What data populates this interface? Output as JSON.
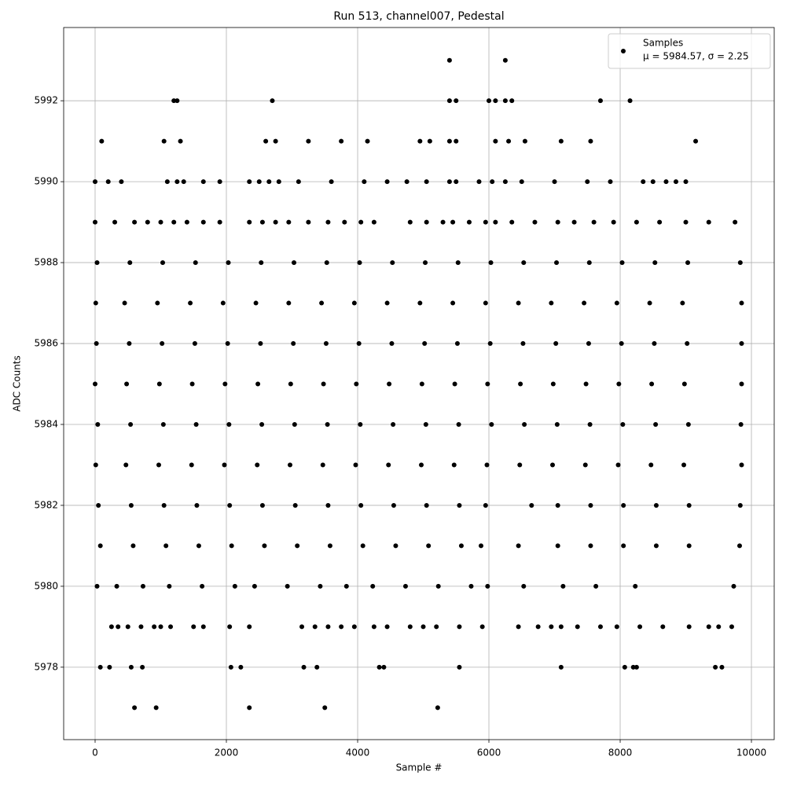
{
  "chart_data": {
    "type": "scatter",
    "title": "Run 513, channel007, Pedestal",
    "x_label": "Sample #",
    "y_label": "ADC Counts",
    "xlim": [
      -479,
      10347
    ],
    "ylim": [
      5976.21,
      5993.81
    ],
    "xticks": [
      0,
      2000,
      4000,
      6000,
      8000,
      10000
    ],
    "yticks": [
      5978,
      5980,
      5982,
      5984,
      5986,
      5988,
      5990,
      5992
    ],
    "grid": true,
    "legend_position": "upper right",
    "legend_stats": "μ = 5984.57, σ = 2.25",
    "series": [
      {
        "name": "Samples",
        "color": "#000000",
        "x": [
          5400,
          6250,
          1200,
          1250,
          2700,
          5400,
          5500,
          6000,
          6100,
          6250,
          6350,
          7700,
          8150,
          100,
          1050,
          1300,
          2600,
          2750,
          3250,
          3750,
          4150,
          4950,
          5100,
          5400,
          5500,
          6100,
          6300,
          6550,
          7100,
          7550,
          9150,
          0,
          200,
          400,
          1100,
          1250,
          1350,
          1650,
          1900,
          2350,
          2500,
          2650,
          2800,
          3100,
          3600,
          4100,
          4450,
          4750,
          5050,
          5400,
          5500,
          5850,
          6050,
          6250,
          6500,
          7000,
          7500,
          7850,
          8350,
          8500,
          8700,
          8850,
          9000,
          0,
          300,
          600,
          800,
          1000,
          1200,
          1400,
          1650,
          1900,
          2350,
          2550,
          2750,
          2950,
          3250,
          3550,
          3800,
          4050,
          4250,
          4800,
          5050,
          5300,
          5450,
          5700,
          5950,
          6100,
          6350,
          6700,
          7050,
          7300,
          7600,
          7900,
          8250,
          8600,
          9000,
          9350,
          9750,
          30,
          530,
          1030,
          1530,
          2030,
          2530,
          3030,
          3530,
          4030,
          4530,
          5030,
          5530,
          6030,
          6530,
          7030,
          7530,
          8030,
          8530,
          9030,
          9830,
          10,
          450,
          950,
          1450,
          1950,
          2450,
          2950,
          3450,
          3950,
          4450,
          4950,
          5450,
          5950,
          6450,
          6950,
          7450,
          7950,
          8450,
          8950,
          9850,
          20,
          520,
          1020,
          1520,
          2020,
          2520,
          3020,
          3520,
          4020,
          4520,
          5020,
          5520,
          6020,
          6520,
          7020,
          7520,
          8020,
          8520,
          9020,
          9850,
          0,
          480,
          980,
          1480,
          1980,
          2480,
          2980,
          3480,
          3980,
          4480,
          4980,
          5480,
          5980,
          6480,
          6980,
          7480,
          7980,
          8480,
          8980,
          9850,
          40,
          540,
          1040,
          1540,
          2040,
          2540,
          3040,
          3540,
          4040,
          4540,
          5040,
          5540,
          6040,
          6540,
          7040,
          7540,
          8040,
          8540,
          9040,
          9840,
          10,
          470,
          970,
          1470,
          1970,
          2470,
          2970,
          3470,
          3970,
          4470,
          4970,
          5470,
          5970,
          6470,
          6970,
          7470,
          7970,
          8470,
          8970,
          9850,
          50,
          550,
          1050,
          1550,
          2050,
          2550,
          3050,
          3550,
          4050,
          4550,
          5050,
          5550,
          5950,
          6650,
          7050,
          7550,
          8050,
          8550,
          9050,
          9830,
          80,
          580,
          1080,
          1580,
          2080,
          2580,
          3080,
          3580,
          4080,
          4580,
          5080,
          5580,
          5880,
          6450,
          7050,
          7550,
          8050,
          8550,
          9050,
          9820,
          30,
          330,
          730,
          1130,
          1630,
          2130,
          2430,
          2930,
          3430,
          3830,
          4230,
          4730,
          5230,
          5730,
          5980,
          6530,
          7130,
          7630,
          8230,
          9730,
          250,
          350,
          500,
          700,
          900,
          1000,
          1150,
          1500,
          1650,
          2050,
          2350,
          3150,
          3350,
          3550,
          3750,
          3950,
          4250,
          4450,
          4800,
          5000,
          5200,
          5550,
          5900,
          6450,
          6750,
          6950,
          7100,
          7350,
          7700,
          7950,
          8300,
          8650,
          9050,
          9350,
          9500,
          9700,
          80,
          220,
          550,
          720,
          2070,
          2220,
          3180,
          3380,
          4330,
          4400,
          5550,
          7100,
          8070,
          8200,
          8250,
          9450,
          9550,
          600,
          930,
          2350,
          3500,
          5220
        ],
        "values": [
          5993,
          5993,
          5992,
          5992,
          5992,
          5992,
          5992,
          5992,
          5992,
          5992,
          5992,
          5992,
          5992,
          5991,
          5991,
          5991,
          5991,
          5991,
          5991,
          5991,
          5991,
          5991,
          5991,
          5991,
          5991,
          5991,
          5991,
          5991,
          5991,
          5991,
          5991,
          5990,
          5990,
          5990,
          5990,
          5990,
          5990,
          5990,
          5990,
          5990,
          5990,
          5990,
          5990,
          5990,
          5990,
          5990,
          5990,
          5990,
          5990,
          5990,
          5990,
          5990,
          5990,
          5990,
          5990,
          5990,
          5990,
          5990,
          5990,
          5990,
          5990,
          5990,
          5990,
          5989,
          5989,
          5989,
          5989,
          5989,
          5989,
          5989,
          5989,
          5989,
          5989,
          5989,
          5989,
          5989,
          5989,
          5989,
          5989,
          5989,
          5989,
          5989,
          5989,
          5989,
          5989,
          5989,
          5989,
          5989,
          5989,
          5989,
          5989,
          5989,
          5989,
          5989,
          5989,
          5989,
          5989,
          5989,
          5989,
          5988,
          5988,
          5988,
          5988,
          5988,
          5988,
          5988,
          5988,
          5988,
          5988,
          5988,
          5988,
          5988,
          5988,
          5988,
          5988,
          5988,
          5988,
          5988,
          5988,
          5987,
          5987,
          5987,
          5987,
          5987,
          5987,
          5987,
          5987,
          5987,
          5987,
          5987,
          5987,
          5987,
          5987,
          5987,
          5987,
          5987,
          5987,
          5987,
          5987,
          5986,
          5986,
          5986,
          5986,
          5986,
          5986,
          5986,
          5986,
          5986,
          5986,
          5986,
          5986,
          5986,
          5986,
          5986,
          5986,
          5986,
          5986,
          5986,
          5986,
          5985,
          5985,
          5985,
          5985,
          5985,
          5985,
          5985,
          5985,
          5985,
          5985,
          5985,
          5985,
          5985,
          5985,
          5985,
          5985,
          5985,
          5985,
          5985,
          5985,
          5984,
          5984,
          5984,
          5984,
          5984,
          5984,
          5984,
          5984,
          5984,
          5984,
          5984,
          5984,
          5984,
          5984,
          5984,
          5984,
          5984,
          5984,
          5984,
          5984,
          5983,
          5983,
          5983,
          5983,
          5983,
          5983,
          5983,
          5983,
          5983,
          5983,
          5983,
          5983,
          5983,
          5983,
          5983,
          5983,
          5983,
          5983,
          5983,
          5983,
          5982,
          5982,
          5982,
          5982,
          5982,
          5982,
          5982,
          5982,
          5982,
          5982,
          5982,
          5982,
          5982,
          5982,
          5982,
          5982,
          5982,
          5982,
          5982,
          5982,
          5981,
          5981,
          5981,
          5981,
          5981,
          5981,
          5981,
          5981,
          5981,
          5981,
          5981,
          5981,
          5981,
          5981,
          5981,
          5981,
          5981,
          5981,
          5981,
          5981,
          5980,
          5980,
          5980,
          5980,
          5980,
          5980,
          5980,
          5980,
          5980,
          5980,
          5980,
          5980,
          5980,
          5980,
          5980,
          5980,
          5980,
          5980,
          5980,
          5980,
          5979,
          5979,
          5979,
          5979,
          5979,
          5979,
          5979,
          5979,
          5979,
          5979,
          5979,
          5979,
          5979,
          5979,
          5979,
          5979,
          5979,
          5979,
          5979,
          5979,
          5979,
          5979,
          5979,
          5979,
          5979,
          5979,
          5979,
          5979,
          5979,
          5979,
          5979,
          5979,
          5979,
          5979,
          5979,
          5979,
          5978,
          5978,
          5978,
          5978,
          5978,
          5978,
          5978,
          5978,
          5978,
          5978,
          5978,
          5978,
          5978,
          5978,
          5978,
          5978,
          5978,
          5977,
          5977,
          5977,
          5977,
          5977
        ]
      }
    ]
  }
}
